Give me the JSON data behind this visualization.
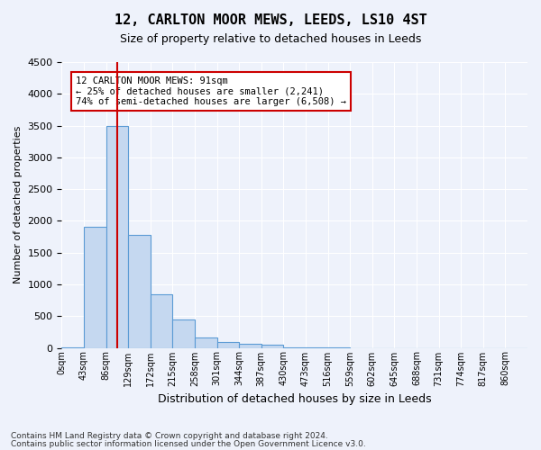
{
  "title": "12, CARLTON MOOR MEWS, LEEDS, LS10 4ST",
  "subtitle": "Size of property relative to detached houses in Leeds",
  "xlabel": "Distribution of detached houses by size in Leeds",
  "ylabel": "Number of detached properties",
  "bar_color": "#c5d8f0",
  "bar_edge_color": "#5b9bd5",
  "bin_labels": [
    "0sqm",
    "43sqm",
    "86sqm",
    "129sqm",
    "172sqm",
    "215sqm",
    "258sqm",
    "301sqm",
    "344sqm",
    "387sqm",
    "430sqm",
    "473sqm",
    "516sqm",
    "559sqm",
    "602sqm",
    "645sqm",
    "688sqm",
    "731sqm",
    "774sqm",
    "817sqm",
    "860sqm"
  ],
  "bar_values": [
    5,
    1900,
    3500,
    1780,
    850,
    440,
    160,
    90,
    65,
    50,
    10,
    5,
    5,
    0,
    0,
    0,
    0,
    0,
    0,
    0,
    0
  ],
  "ylim": [
    0,
    4500
  ],
  "yticks": [
    0,
    500,
    1000,
    1500,
    2000,
    2500,
    3000,
    3500,
    4000,
    4500
  ],
  "annotation_title": "12 CARLTON MOOR MEWS: 91sqm",
  "annotation_line1": "← 25% of detached houses are smaller (2,241)",
  "annotation_line2": "74% of semi-detached houses are larger (6,508) →",
  "vline_x": 2,
  "footer_line1": "Contains HM Land Registry data © Crown copyright and database right 2024.",
  "footer_line2": "Contains public sector information licensed under the Open Government Licence v3.0.",
  "background_color": "#eef2fb",
  "grid_color": "#ffffff",
  "annotation_box_color": "#ffffff",
  "annotation_box_edge_color": "#cc0000",
  "vline_color": "#cc0000"
}
